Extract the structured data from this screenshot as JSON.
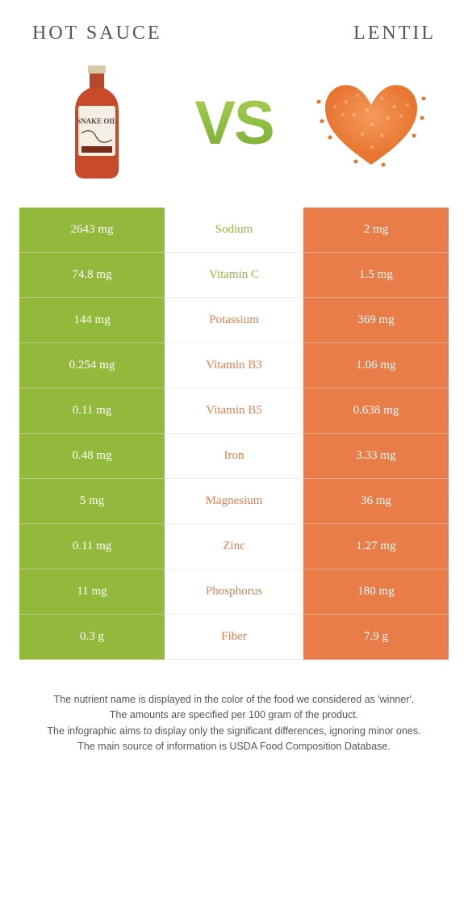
{
  "titles": {
    "left": "HOT SAUCE",
    "right": "LENTIL"
  },
  "vs": "VS",
  "colors": {
    "left": "#92b83c",
    "right": "#e87d4a",
    "leftGrad": "#8fbf3f"
  },
  "bottle": {
    "label": "SNAKE OIL"
  },
  "rows": [
    {
      "left": "2643 mg",
      "mid": "Sodium",
      "right": "2 mg",
      "winner": "left"
    },
    {
      "left": "74.8 mg",
      "mid": "Vitamin C",
      "right": "1.5 mg",
      "winner": "left"
    },
    {
      "left": "144 mg",
      "mid": "Potassium",
      "right": "369 mg",
      "winner": "right"
    },
    {
      "left": "0.254 mg",
      "mid": "Vitamin B3",
      "right": "1.06 mg",
      "winner": "right"
    },
    {
      "left": "0.11 mg",
      "mid": "Vitamin B5",
      "right": "0.638 mg",
      "winner": "right"
    },
    {
      "left": "0.48 mg",
      "mid": "Iron",
      "right": "3.33 mg",
      "winner": "right"
    },
    {
      "left": "5 mg",
      "mid": "Magnesium",
      "right": "36 mg",
      "winner": "right"
    },
    {
      "left": "0.11 mg",
      "mid": "Zinc",
      "right": "1.27 mg",
      "winner": "right"
    },
    {
      "left": "11 mg",
      "mid": "Phosphorus",
      "right": "180 mg",
      "winner": "right"
    },
    {
      "left": "0.3 g",
      "mid": "Fiber",
      "right": "7.9 g",
      "winner": "right"
    }
  ],
  "footer": [
    "The nutrient name is displayed in the color of the food we considered as 'winner'.",
    "The amounts are specified per 100 gram of the product.",
    "The infographic aims to display only the significant differences, ignoring minor ones.",
    "The main source of information is USDA Food Composition Database."
  ]
}
